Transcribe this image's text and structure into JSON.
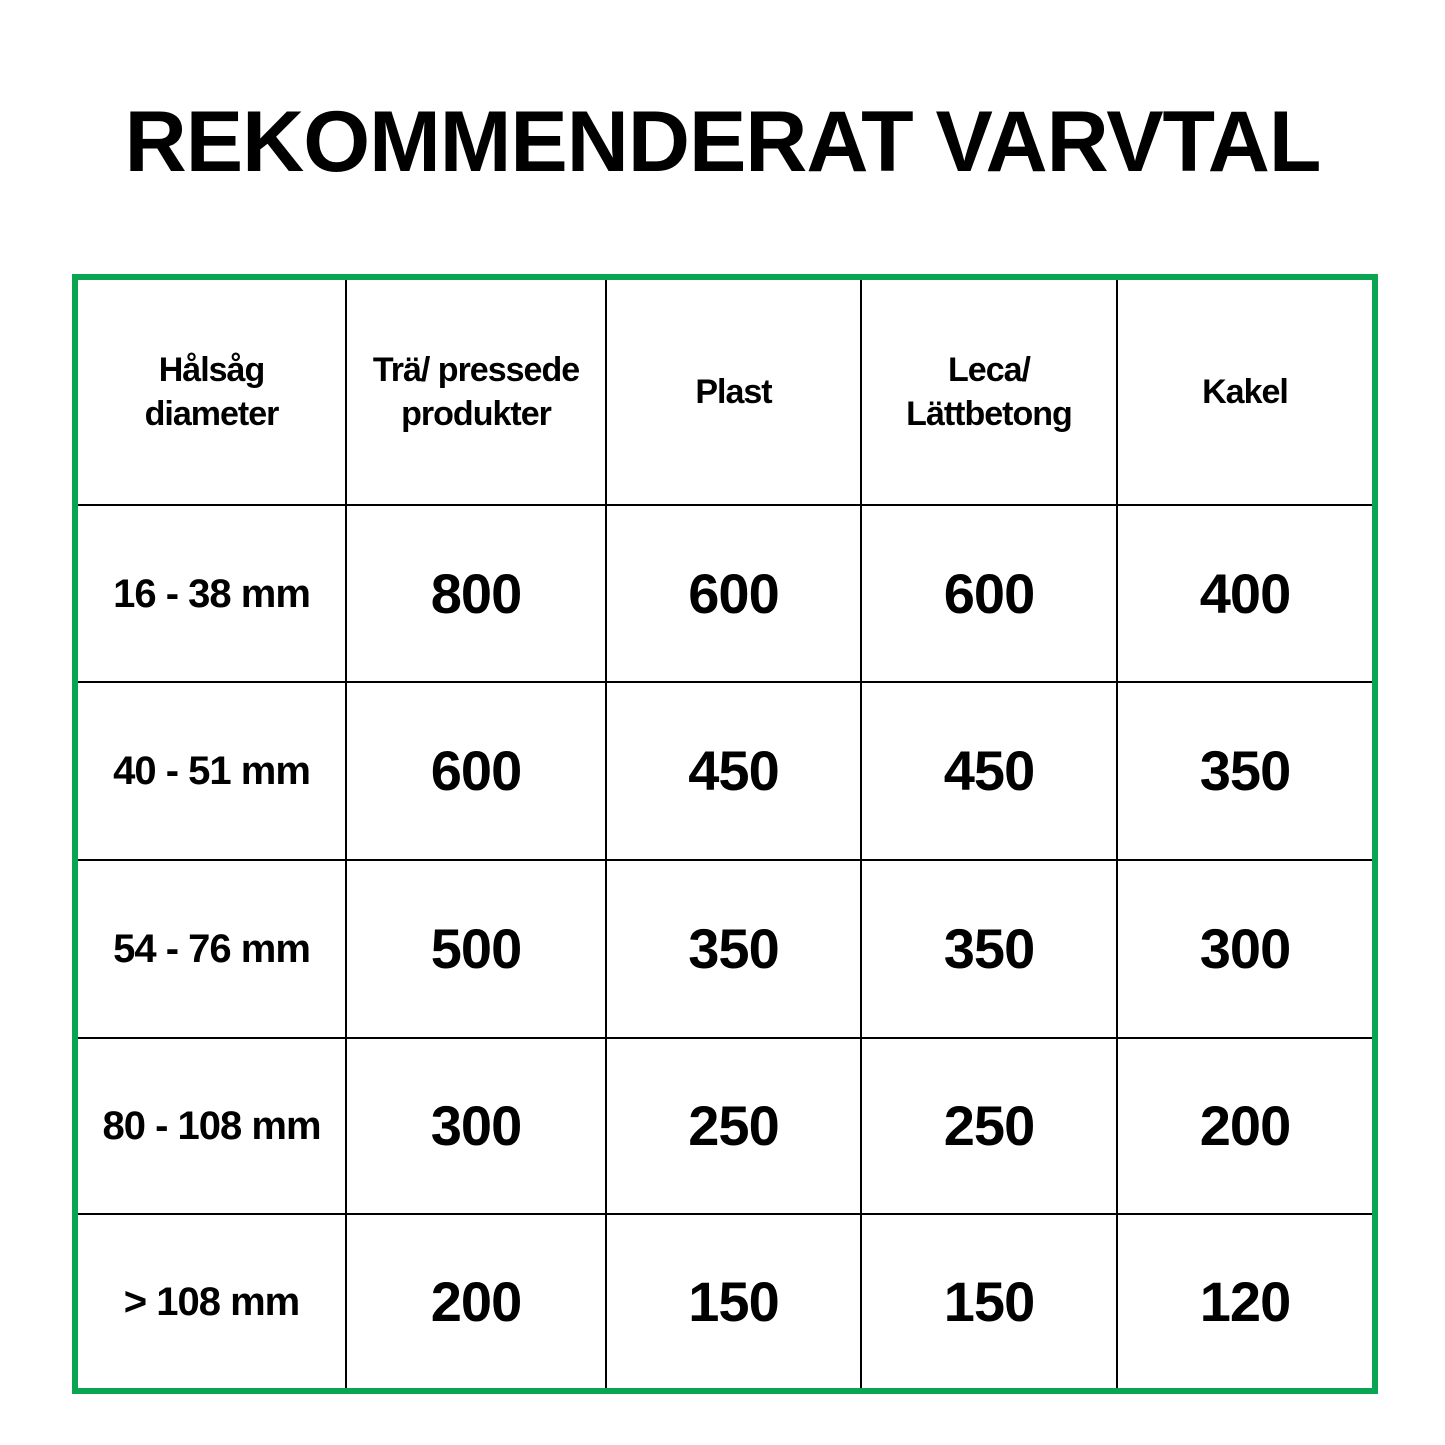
{
  "title": "REKOMMENDERAT VARVTAL",
  "colors": {
    "border": "#0aa550",
    "grid": "#000000"
  },
  "table": {
    "headers": [
      "Hålsåg\ndiameter",
      "Trä/ pressede\nprodukter",
      "Plast",
      "Leca/\nLättbetong",
      "Kakel"
    ],
    "rows": [
      [
        "16 - 38 mm",
        "800",
        "600",
        "600",
        "400"
      ],
      [
        "40 - 51 mm",
        "600",
        "450",
        "450",
        "350"
      ],
      [
        "54 - 76 mm",
        "500",
        "350",
        "350",
        "300"
      ],
      [
        "80 - 108 mm",
        "300",
        "250",
        "250",
        "200"
      ],
      [
        "> 108 mm",
        "200",
        "150",
        "150",
        "120"
      ]
    ]
  }
}
